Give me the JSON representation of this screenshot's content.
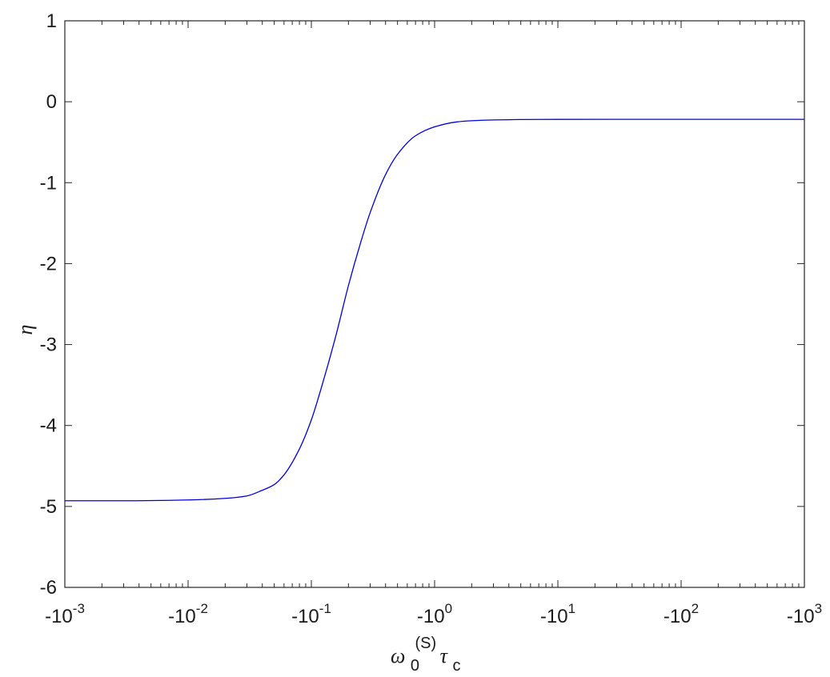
{
  "chart_data": {
    "type": "line",
    "x_scale": "log",
    "x_tick_base": "-10",
    "x_tick_exponents": [
      "-3",
      "-2",
      "-1",
      "0",
      "1",
      "2",
      "3"
    ],
    "xlim": [
      -0.001,
      -1000
    ],
    "ylim": [
      -6,
      1
    ],
    "y_ticks": [
      "1",
      "0",
      "-1",
      "-2",
      "-3",
      "-4",
      "-5",
      "-6"
    ],
    "xlabel": {
      "symbol": "ω",
      "sub1": "0",
      "sup": "(S)",
      "symbol2": "τ",
      "sub2": "c"
    },
    "ylabel": "η",
    "grid": false,
    "series": [
      {
        "color": "#0000dd",
        "x": [
          -0.001,
          -0.003,
          -0.01,
          -0.02,
          -0.03,
          -0.04,
          -0.05,
          -0.06,
          -0.08,
          -0.1,
          -0.13,
          -0.16,
          -0.2,
          -0.25,
          -0.3,
          -0.4,
          -0.5,
          -0.7,
          -1,
          -1.5,
          -2,
          -3,
          -5,
          -10,
          -30,
          -100,
          -1000
        ],
        "y": [
          -4.93,
          -4.93,
          -4.92,
          -4.9,
          -4.87,
          -4.8,
          -4.73,
          -4.61,
          -4.29,
          -3.93,
          -3.36,
          -2.86,
          -2.27,
          -1.75,
          -1.37,
          -0.9,
          -0.65,
          -0.42,
          -0.31,
          -0.25,
          -0.235,
          -0.225,
          -0.22,
          -0.218,
          -0.217,
          -0.217,
          -0.217
        ]
      }
    ]
  }
}
